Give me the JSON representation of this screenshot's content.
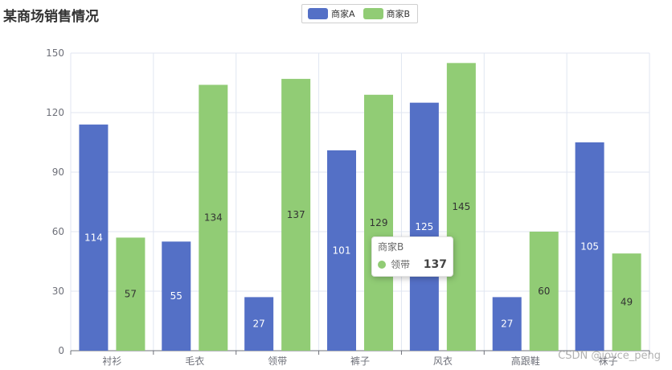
{
  "title": "某商场销售情况",
  "legend": [
    {
      "name": "商家A",
      "color": "#5470c6"
    },
    {
      "name": "商家B",
      "color": "#91cc75"
    }
  ],
  "chart_data": {
    "type": "bar",
    "title": "某商场销售情况",
    "categories": [
      "衬衫",
      "毛衣",
      "领带",
      "裤子",
      "风衣",
      "高跟鞋",
      "袜子"
    ],
    "series": [
      {
        "name": "商家A",
        "color": "#5470c6",
        "values": [
          114,
          55,
          27,
          101,
          125,
          27,
          105
        ]
      },
      {
        "name": "商家B",
        "color": "#91cc75",
        "values": [
          57,
          134,
          137,
          129,
          145,
          60,
          49
        ]
      }
    ],
    "yticks": [
      0,
      30,
      60,
      90,
      120,
      150
    ],
    "ylim": [
      0,
      150
    ],
    "grid": true,
    "legend_position": "top-center",
    "data_labels": "inside-middle"
  },
  "tooltip": {
    "series": "商家B",
    "category": "领带",
    "value": "137",
    "color": "#91cc75"
  },
  "watermark": "CSDN @joyce_peng"
}
